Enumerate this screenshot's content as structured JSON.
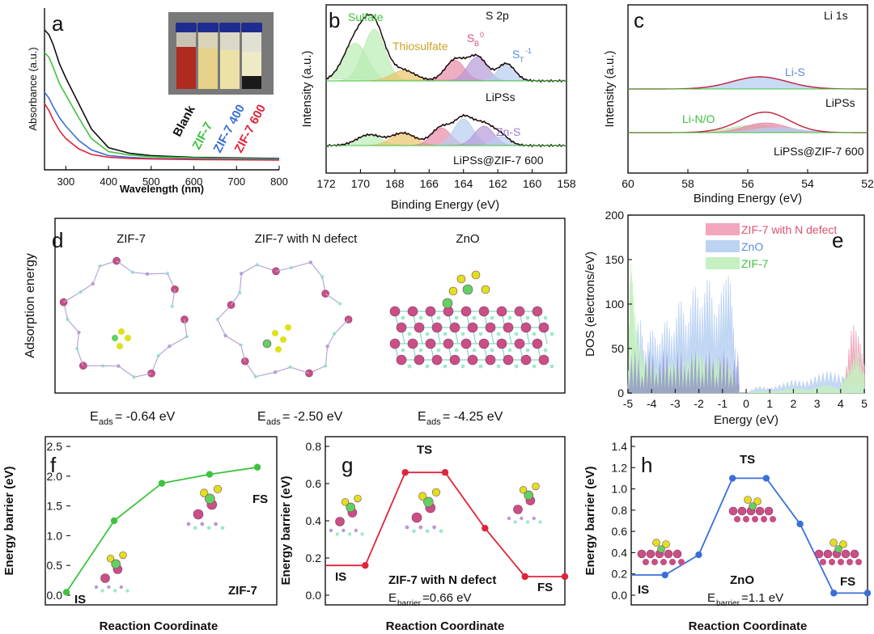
{
  "colors": {
    "black": "#111111",
    "green": "#3fc23f",
    "blue": "#3a6fd8",
    "red": "#e0243a",
    "pink": "#e88aa8",
    "lightblue": "#b7cdf0",
    "lightgreen": "#b9ecb3",
    "orange": "#e9c46a",
    "purple": "#b79ad9",
    "zn": "#c94f86",
    "s": "#dde21c",
    "n": "#b99ad8",
    "c": "#9ee8cf",
    "li": "#5fd25f"
  },
  "panels": {
    "a": {
      "letter": "a",
      "ylabel": "Absorbance (a.u.)",
      "xlabel": "Wavelength (nm)",
      "xticks": [
        "300",
        "400",
        "500",
        "600",
        "700",
        "800"
      ],
      "legend": [
        "Blank",
        "ZIF-7",
        "ZIF-7 400",
        "ZIF-7 600"
      ],
      "inset_icon": "vials-photo-icon"
    },
    "b": {
      "letter": "b",
      "title": "S 2p",
      "ylabel": "Intensity (a.u.)",
      "xlabel": "Binding Energy (eV)",
      "xticks": [
        "172",
        "170",
        "168",
        "166",
        "164",
        "162",
        "160",
        "158"
      ],
      "peak_labels": [
        "Sulfate",
        "Thiosulfate",
        "S",
        "B",
        "0",
        "S",
        "T",
        "-1",
        "Zn-S"
      ],
      "series_labels": [
        "LiPSs",
        "LiPSs@ZIF-7 600"
      ]
    },
    "c": {
      "letter": "c",
      "title": "Li 1s",
      "ylabel": "Intensity (a.u.)",
      "xlabel": "Binding Energy (eV)",
      "xticks": [
        "60",
        "58",
        "56",
        "54",
        "52"
      ],
      "peak_labels": [
        "Li-S",
        "Li-N/O"
      ],
      "series_labels": [
        "LiPSs",
        "LiPSs@ZIF-7 600"
      ]
    },
    "d": {
      "letter": "d",
      "ylabel": "Adsorption energy",
      "structures": [
        {
          "title": "ZIF-7",
          "e_prefix": "E",
          "e_sub": "ads",
          "e_value": "= -0.64 eV"
        },
        {
          "title": "ZIF-7 with N defect",
          "e_prefix": "E",
          "e_sub": "ads",
          "e_value": "= -2.50 eV"
        },
        {
          "title": "ZnO",
          "e_prefix": "E",
          "e_sub": "ads",
          "e_value": "= -4.25 eV"
        }
      ]
    },
    "e": {
      "letter": "e",
      "ylabel": "DOS (electrons/eV)",
      "xlabel": "Energy (eV)",
      "yticks": [
        "0",
        "50",
        "100",
        "150",
        "200"
      ],
      "xticks": [
        "-5",
        "-4",
        "-3",
        "-2",
        "-1",
        "0",
        "1",
        "2",
        "3",
        "4",
        "5"
      ],
      "legend": [
        "ZIF-7 with N defect",
        "ZnO",
        "ZIF-7"
      ]
    },
    "f": {
      "letter": "f",
      "ylabel": "Energy barrier (eV)",
      "xlabel": "Reaction Coordinate",
      "yticks": [
        "0.0",
        "0.5",
        "1.0",
        "1.5",
        "2.0",
        "2.5"
      ],
      "labels": {
        "is": "IS",
        "fs": "FS",
        "name": "ZIF-7"
      }
    },
    "g": {
      "letter": "g",
      "ylabel": "Energy barrier (eV)",
      "xlabel": "Reaction Coordinate",
      "yticks": [
        "0.0",
        "0.2",
        "0.4",
        "0.6",
        "0.8"
      ],
      "labels": {
        "is": "IS",
        "ts": "TS",
        "fs": "FS",
        "name": "ZIF-7 with N defect",
        "e_prefix": "E",
        "e_sub": "barrier",
        "e_value": "=0.66 eV"
      }
    },
    "h": {
      "letter": "h",
      "ylabel": "Energy barrier (eV)",
      "xlabel": "Reaction Coordinate",
      "yticks": [
        "0.0",
        "0.2",
        "0.4",
        "0.6",
        "0.8",
        "1.0",
        "1.2",
        "1.4"
      ],
      "labels": {
        "is": "IS",
        "ts": "TS",
        "fs": "FS",
        "name": "ZnO",
        "e_prefix": "E",
        "e_sub": "barrier",
        "e_value": "=1.1 eV"
      }
    }
  },
  "chart_data": [
    {
      "panel": "a",
      "type": "line",
      "xlabel": "Wavelength (nm)",
      "ylabel": "Absorbance (a.u.)",
      "xlim": [
        250,
        800
      ],
      "series": [
        {
          "name": "Blank",
          "color": "#111111",
          "x": [
            250,
            260,
            270,
            285,
            300,
            330,
            360,
            400,
            450,
            500,
            600,
            800
          ],
          "y": [
            2.3,
            2.22,
            2.05,
            1.7,
            1.45,
            1.0,
            0.55,
            0.22,
            0.12,
            0.08,
            0.05,
            0.03
          ]
        },
        {
          "name": "ZIF-7",
          "color": "#3fc23f",
          "x": [
            250,
            260,
            270,
            285,
            300,
            330,
            360,
            400,
            450,
            500,
            600,
            800
          ],
          "y": [
            1.9,
            1.82,
            1.65,
            1.35,
            1.15,
            0.75,
            0.38,
            0.15,
            0.09,
            0.06,
            0.04,
            0.02
          ]
        },
        {
          "name": "ZIF-7 400",
          "color": "#3a6fd8",
          "x": [
            250,
            260,
            270,
            285,
            300,
            330,
            360,
            400,
            450,
            500,
            600,
            800
          ],
          "y": [
            1.2,
            1.1,
            0.95,
            0.75,
            0.6,
            0.35,
            0.18,
            0.08,
            0.05,
            0.03,
            0.02,
            0.01
          ]
        },
        {
          "name": "ZIF-7 600",
          "color": "#e0243a",
          "x": [
            250,
            260,
            270,
            285,
            300,
            330,
            360,
            400,
            450,
            500,
            600,
            800
          ],
          "y": [
            1.0,
            0.88,
            0.72,
            0.52,
            0.38,
            0.2,
            0.1,
            0.05,
            0.03,
            0.02,
            0.01,
            0.0
          ]
        }
      ]
    },
    {
      "panel": "b",
      "type": "area",
      "xlabel": "Binding Energy (eV)",
      "xlim": [
        172,
        158
      ],
      "series": [
        {
          "name": "LiPSs",
          "offset": 1.0,
          "peaks": [
            {
              "label": "Sulfate",
              "c": 170.3,
              "a": 0.55,
              "w": 1.0,
              "color": "#b9ecb3"
            },
            {
              "label": "Sulfate",
              "c": 169.2,
              "a": 0.75,
              "w": 0.9,
              "color": "#b9ecb3"
            },
            {
              "label": "Thiosulfate",
              "c": 167.5,
              "a": 0.15,
              "w": 1.0,
              "color": "#e9c46a"
            },
            {
              "label": "S_B^0",
              "c": 164.5,
              "a": 0.3,
              "w": 0.8,
              "color": "#e88aa8"
            },
            {
              "label": "S_B^0",
              "c": 163.2,
              "a": 0.35,
              "w": 0.8,
              "color": "#b79ad9"
            },
            {
              "label": "S_T^-1",
              "c": 161.5,
              "a": 0.25,
              "w": 0.7,
              "color": "#b7cdf0"
            }
          ]
        },
        {
          "name": "LiPSs@ZIF-7 600",
          "offset": 0.0,
          "peaks": [
            {
              "label": "Sulfate",
              "c": 169.5,
              "a": 0.12,
              "w": 1.0,
              "color": "#b9ecb3"
            },
            {
              "label": "Thiosulfate",
              "c": 167.5,
              "a": 0.14,
              "w": 1.0,
              "color": "#e9c46a"
            },
            {
              "label": "S_B^0",
              "c": 165.3,
              "a": 0.2,
              "w": 0.8,
              "color": "#e88aa8"
            },
            {
              "label": "S_B^0",
              "c": 164.0,
              "a": 0.3,
              "w": 0.8,
              "color": "#b7cdf0"
            },
            {
              "label": "Zn-S",
              "c": 162.8,
              "a": 0.22,
              "w": 0.8,
              "color": "#b79ad9"
            },
            {
              "label": "S_T^-1",
              "c": 161.8,
              "a": 0.1,
              "w": 0.7,
              "color": "#b7cdf0"
            }
          ]
        }
      ]
    },
    {
      "panel": "c",
      "type": "area",
      "xlabel": "Binding Energy (eV)",
      "xlim": [
        60,
        52
      ],
      "series": [
        {
          "name": "LiPSs",
          "peaks": [
            {
              "label": "Li-S",
              "c": 55.6,
              "a": 0.25,
              "w": 1.3,
              "color": "#b7cdf0"
            }
          ]
        },
        {
          "name": "LiPSs@ZIF-7 600",
          "peaks": [
            {
              "label": "Li-N/O",
              "c": 55.8,
              "a": 0.15,
              "w": 1.2,
              "color": "#b9ecb3"
            },
            {
              "label": "Li-S",
              "c": 55.4,
              "a": 0.2,
              "w": 1.0,
              "color": "#e88aa8"
            },
            {
              "label": "Li-S",
              "c": 55.0,
              "a": 0.1,
              "w": 1.1,
              "color": "#b7cdf0"
            }
          ]
        }
      ]
    },
    {
      "panel": "e",
      "type": "area",
      "xlabel": "Energy (eV)",
      "ylabel": "DOS (electrons/eV)",
      "xlim": [
        -5,
        5
      ],
      "ylim": [
        0,
        200
      ],
      "series": [
        {
          "name": "ZIF-7 with N defect",
          "color": "#f2a7bd",
          "x": [
            -5,
            -4.8,
            -4.5,
            -4.2,
            -3.9,
            -3.5,
            -3.1,
            -2.7,
            -2.3,
            -1.9,
            -1.5,
            -1.1,
            -0.7,
            -0.5,
            -0.3,
            0,
            3.8,
            4.2,
            4.5,
            4.8,
            5
          ],
          "y": [
            0,
            30,
            20,
            35,
            15,
            25,
            30,
            20,
            35,
            40,
            30,
            45,
            35,
            20,
            0,
            0,
            0,
            20,
            80,
            60,
            30
          ]
        },
        {
          "name": "ZnO",
          "color": "#bcd3f2",
          "x": [
            -5,
            -4.5,
            -4.3,
            -4.0,
            -3.7,
            -3.4,
            -3.1,
            -2.8,
            -2.5,
            -2.2,
            -1.9,
            -1.6,
            -1.3,
            -1.0,
            -0.7,
            -0.5,
            -0.3,
            0,
            0.5,
            1.0,
            1.5,
            2.0,
            2.5,
            3.0,
            3.5,
            4.0,
            4.5,
            5
          ],
          "y": [
            20,
            90,
            40,
            75,
            50,
            85,
            60,
            110,
            70,
            125,
            90,
            135,
            80,
            120,
            135,
            60,
            0,
            0,
            8,
            5,
            10,
            15,
            12,
            20,
            25,
            20,
            15,
            10
          ]
        },
        {
          "name": "ZIF-7",
          "color": "#c5f0c0",
          "x": [
            -5,
            -4.9,
            -4.8,
            -4.6,
            -4.3,
            -4.0,
            -3.6,
            -3.2,
            -2.8,
            -2.4,
            -2.0,
            -1.6,
            -1.2,
            -0.8,
            -0.5,
            -0.3,
            0,
            4.0,
            4.4,
            4.7,
            5
          ],
          "y": [
            0,
            150,
            120,
            60,
            40,
            30,
            25,
            35,
            30,
            40,
            45,
            35,
            40,
            30,
            20,
            0,
            0,
            10,
            30,
            50,
            20
          ]
        }
      ]
    },
    {
      "panel": "f",
      "type": "line",
      "xlabel": "Reaction Coordinate",
      "ylabel": "Energy barrier (eV)",
      "ylim": [
        0,
        2.5
      ],
      "series": [
        {
          "name": "ZIF-7",
          "x": [
            1,
            2,
            3,
            4,
            5
          ],
          "y": [
            0.05,
            1.25,
            1.88,
            2.03,
            2.15
          ]
        }
      ]
    },
    {
      "panel": "g",
      "type": "line",
      "xlabel": "Reaction Coordinate",
      "ylabel": "Energy barrier (eV)",
      "ylim": [
        0,
        0.8
      ],
      "series": [
        {
          "name": "ZIF-7 with N defect",
          "x": [
            1,
            2,
            3,
            4,
            5,
            6,
            7
          ],
          "y": [
            0.16,
            0.16,
            0.66,
            0.66,
            0.36,
            0.1,
            0.1
          ],
          "points_at": [
            2,
            3,
            4,
            5,
            6,
            7
          ]
        }
      ]
    },
    {
      "panel": "h",
      "type": "line",
      "xlabel": "Reaction Coordinate",
      "ylabel": "Energy barrier (eV)",
      "ylim": [
        0,
        1.4
      ],
      "series": [
        {
          "name": "ZnO",
          "x": [
            1,
            2,
            3,
            4,
            5,
            6,
            7,
            8
          ],
          "y": [
            0.19,
            0.19,
            0.38,
            1.1,
            1.1,
            0.67,
            0.02,
            0.02
          ],
          "points_at": [
            2,
            3,
            4,
            5,
            6,
            7,
            8
          ]
        }
      ]
    }
  ]
}
